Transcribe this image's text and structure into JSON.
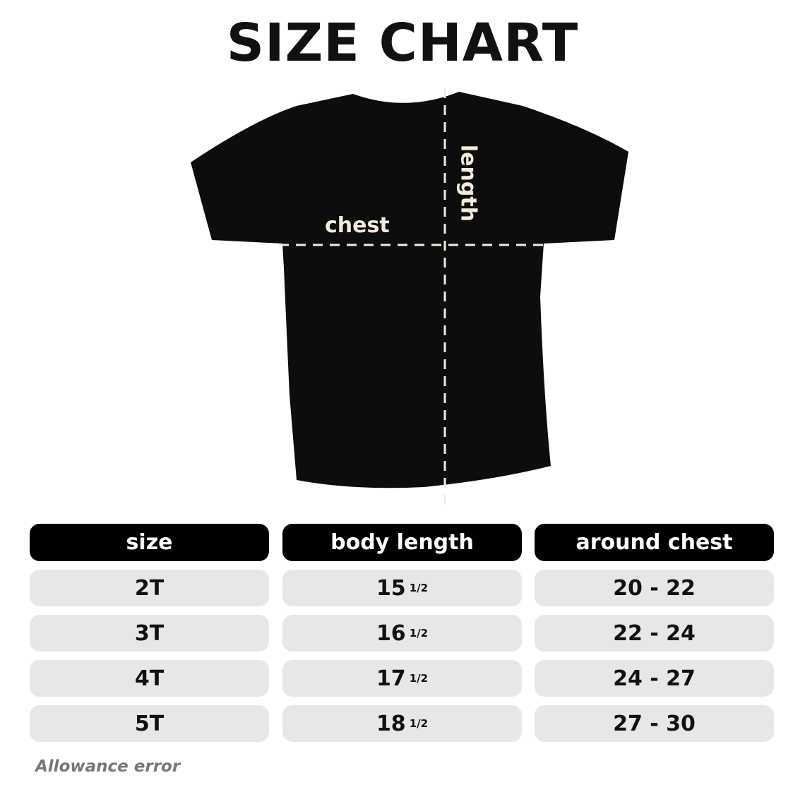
{
  "title": "SIZE CHART",
  "diagram": {
    "chest_label": "chest",
    "length_label": "length"
  },
  "table": {
    "headers": [
      "size",
      "body length",
      "around chest"
    ],
    "rows": [
      {
        "size": "2T",
        "length": "15",
        "length_frac": "1/2",
        "chest": "20 - 22"
      },
      {
        "size": "3T",
        "length": "16",
        "length_frac": "1/2",
        "chest": "22 - 24"
      },
      {
        "size": "4T",
        "length": "17",
        "length_frac": "1/2",
        "chest": "24 - 27"
      },
      {
        "size": "5T",
        "length": "18",
        "length_frac": "1/2",
        "chest": "27 - 30"
      }
    ]
  },
  "footnote": "Allowance error",
  "colors": {
    "header_bg": "#000000",
    "cell_bg": "#e6e7e8",
    "shirt": "#0d0d0d",
    "label": "#f3ecdc"
  }
}
